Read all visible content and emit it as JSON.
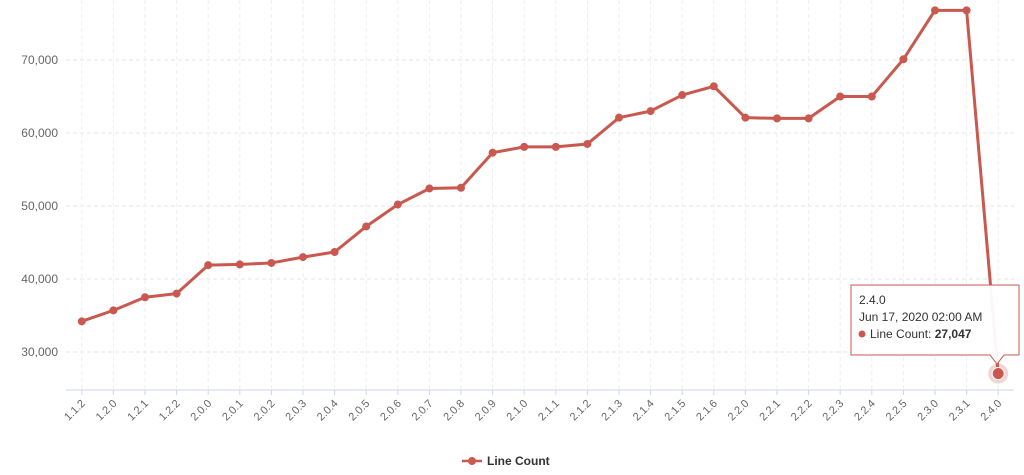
{
  "chart_data": {
    "type": "line",
    "title": "",
    "xlabel": "",
    "ylabel": "",
    "ylim": [
      25000,
      80000
    ],
    "yticks": [
      30000,
      40000,
      50000,
      60000,
      70000
    ],
    "ytick_labels": [
      "30,000",
      "40,000",
      "50,000",
      "60,000",
      "70,000"
    ],
    "grid": true,
    "legend_position": "bottom-center",
    "categories": [
      "1.1.2",
      "1.2.0",
      "1.2.1",
      "1.2.2",
      "2.0.0",
      "2.0.1",
      "2.0.2",
      "2.0.3",
      "2.0.4",
      "2.0.5",
      "2.0.6",
      "2.0.7",
      "2.0.8",
      "2.0.9",
      "2.1.0",
      "2.1.1",
      "2.1.2",
      "2.1.3",
      "2.1.4",
      "2.1.5",
      "2.1.6",
      "2.2.0",
      "2.2.1",
      "2.2.2",
      "2.2.3",
      "2.2.4",
      "2.2.5",
      "2.3.0",
      "2.3.1",
      "2.4.0"
    ],
    "series": [
      {
        "name": "Line Count",
        "color": "#c9594f",
        "values": [
          34200,
          35700,
          37500,
          38000,
          41900,
          42000,
          42200,
          43000,
          43700,
          47200,
          50200,
          52400,
          52500,
          57300,
          58100,
          58100,
          58500,
          62100,
          63000,
          65200,
          66400,
          62100,
          62000,
          62000,
          65000,
          65000,
          70100,
          76800,
          76800,
          27047
        ]
      }
    ],
    "tooltip": {
      "category": "2.4.0",
      "date": "Jun 17, 2020 02:00 AM",
      "series_name": "Line Count",
      "value_text": "27,047",
      "value": 27047
    }
  }
}
